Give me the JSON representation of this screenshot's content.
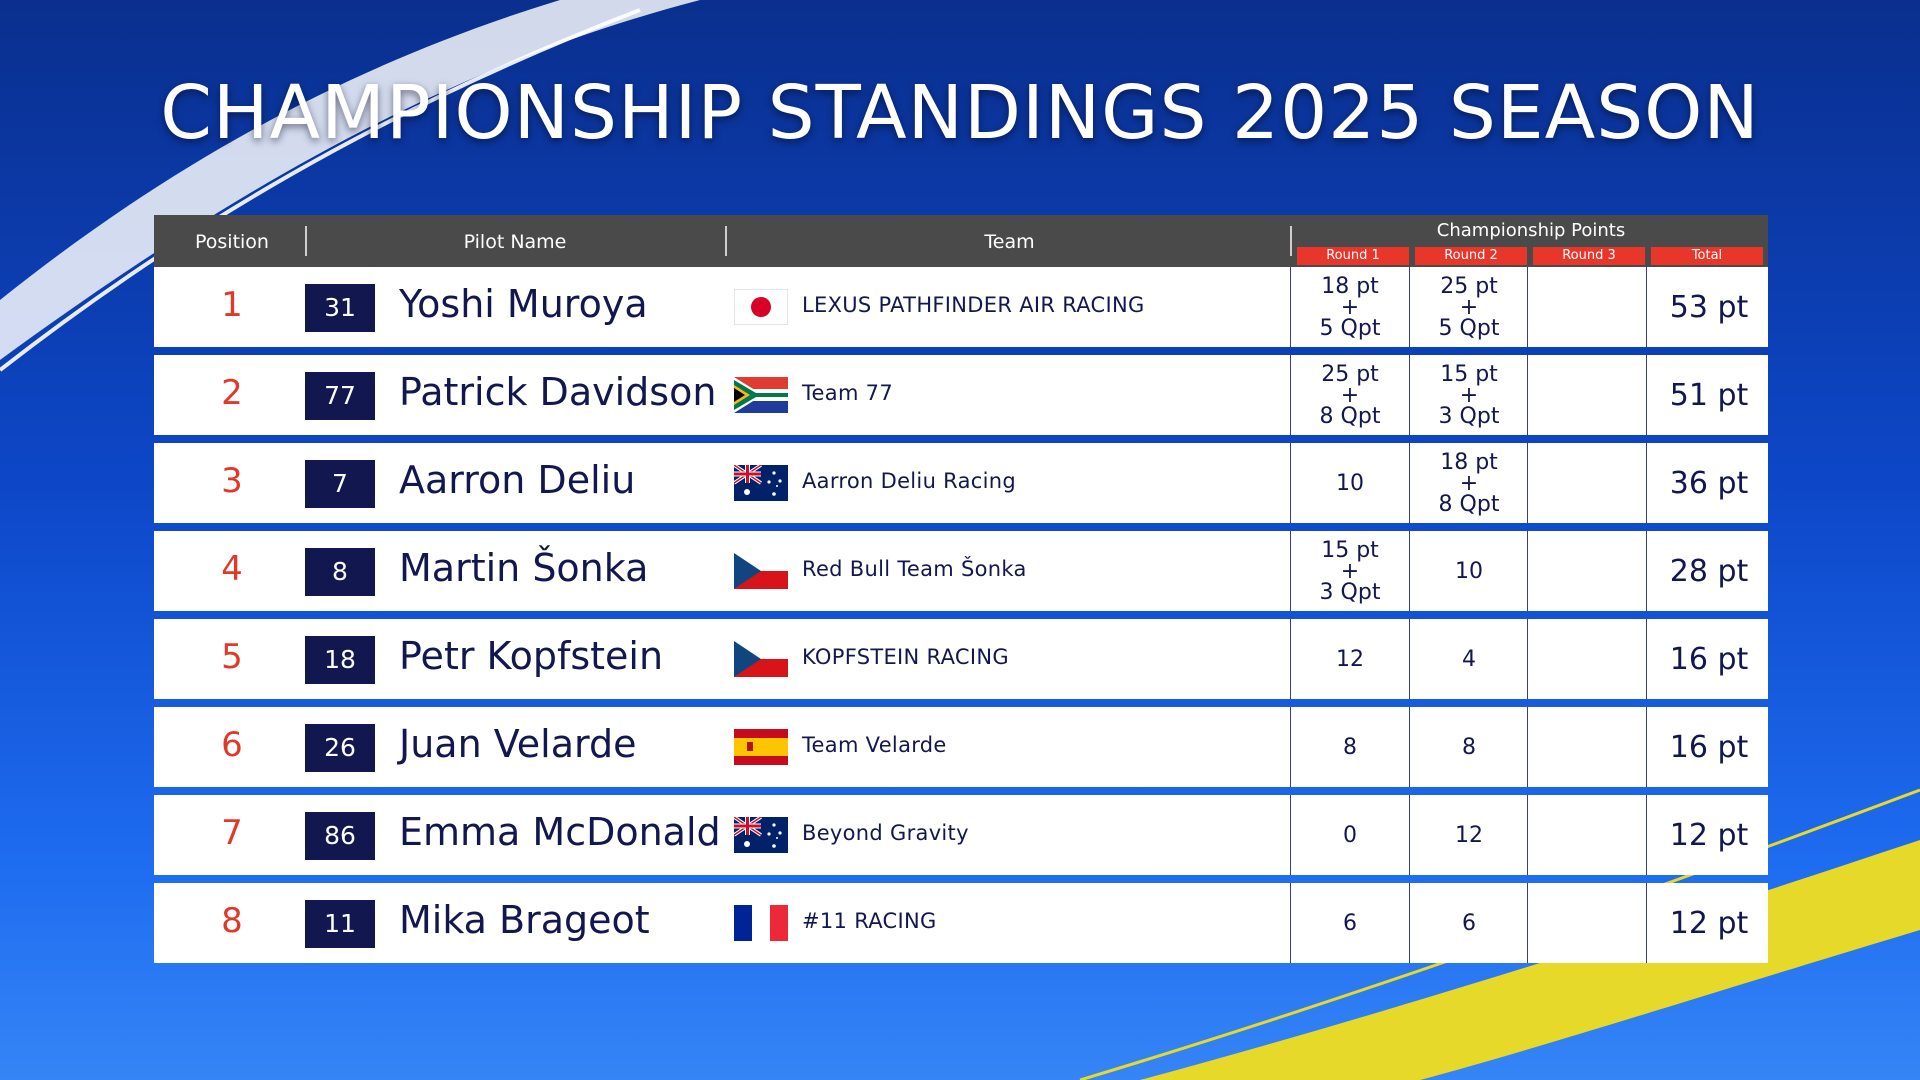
{
  "title": "CHAMPIONSHIP STANDINGS 2025 SEASON",
  "header": {
    "position": "Position",
    "pilot_name": "Pilot Name",
    "team": "Team",
    "championship_points": "Championship Points",
    "round1": "Round 1",
    "round2": "Round 2",
    "round3": "Round 3",
    "total": "Total"
  },
  "colors": {
    "header_bg": "#4a4a4a",
    "round_tab": "#e8362a",
    "position_text": "#e0392c",
    "number_badge": "#13174f",
    "row_text": "#13174f"
  },
  "rows": [
    {
      "position": "1",
      "number": "31",
      "name": "Yoshi Muroya",
      "flag": "japan-flag",
      "team": "LEXUS PATHFINDER AIR RACING",
      "r1": [
        "18 pt",
        "+",
        "5 Qpt"
      ],
      "r2": [
        "25 pt",
        "+",
        "5 Qpt"
      ],
      "r3": [],
      "total": "53 pt"
    },
    {
      "position": "2",
      "number": "77",
      "name": "Patrick Davidson",
      "flag": "south-africa-flag",
      "team": "Team 77",
      "r1": [
        "25 pt",
        "+",
        "8 Qpt"
      ],
      "r2": [
        "15 pt",
        "+",
        "3 Qpt"
      ],
      "r3": [],
      "total": "51 pt"
    },
    {
      "position": "3",
      "number": "7",
      "name": "Aarron Deliu",
      "flag": "australia-flag",
      "team": "Aarron Deliu Racing",
      "r1": [
        "10"
      ],
      "r2": [
        "18 pt",
        "+",
        "8 Qpt"
      ],
      "r3": [],
      "total": "36 pt"
    },
    {
      "position": "4",
      "number": "8",
      "name": "Martin Šonka",
      "flag": "czech-flag",
      "team": "Red Bull Team Šonka",
      "r1": [
        "15 pt",
        "+",
        "3 Qpt"
      ],
      "r2": [
        "10"
      ],
      "r3": [],
      "total": "28 pt"
    },
    {
      "position": "5",
      "number": "18",
      "name": "Petr Kopfstein",
      "flag": "czech-flag",
      "team": "KOPFSTEIN RACING",
      "r1": [
        "12"
      ],
      "r2": [
        "4"
      ],
      "r3": [],
      "total": "16 pt"
    },
    {
      "position": "6",
      "number": "26",
      "name": "Juan Velarde",
      "flag": "spain-flag",
      "team": "Team Velarde",
      "r1": [
        "8"
      ],
      "r2": [
        "8"
      ],
      "r3": [],
      "total": "16 pt"
    },
    {
      "position": "7",
      "number": "86",
      "name": "Emma McDonald",
      "flag": "australia-flag",
      "team": "Beyond Gravity",
      "r1": [
        "0"
      ],
      "r2": [
        "12"
      ],
      "r3": [],
      "total": "12 pt"
    },
    {
      "position": "8",
      "number": "11",
      "name": "Mika Brageot",
      "flag": "france-flag",
      "team": "#11 RACING",
      "r1": [
        "6"
      ],
      "r2": [
        "6"
      ],
      "r3": [],
      "total": "12 pt"
    }
  ]
}
